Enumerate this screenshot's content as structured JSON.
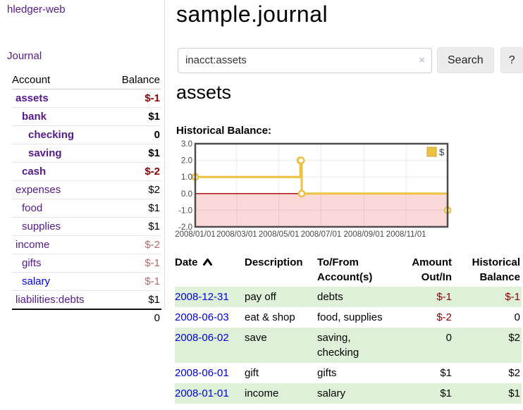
{
  "app": {
    "brand": "hledger-web",
    "nav_journal": "Journal"
  },
  "sidebar": {
    "headers": {
      "account": "Account",
      "balance": "Balance"
    },
    "accounts": [
      {
        "name": "assets",
        "level": 0,
        "bold": true,
        "link": "visited",
        "balance": "$-1",
        "balance_class": "neg"
      },
      {
        "name": "bank",
        "level": 1,
        "bold": true,
        "link": "visited",
        "balance": "$1",
        "balance_class": "pos"
      },
      {
        "name": "checking",
        "level": 2,
        "bold": true,
        "link": "visited",
        "balance": "0",
        "balance_class": "pos"
      },
      {
        "name": "saving",
        "level": 2,
        "bold": true,
        "link": "visited",
        "balance": "$1",
        "balance_class": "pos"
      },
      {
        "name": "cash",
        "level": 1,
        "bold": true,
        "link": "visited",
        "balance": "$-2",
        "balance_class": "neg"
      },
      {
        "name": "expenses",
        "level": 0,
        "bold": false,
        "link": "visited",
        "balance": "$2",
        "balance_class": "pos"
      },
      {
        "name": "food",
        "level": 1,
        "bold": false,
        "link": "visited",
        "balance": "$1",
        "balance_class": "pos"
      },
      {
        "name": "supplies",
        "level": 1,
        "bold": false,
        "link": "visited",
        "balance": "$1",
        "balance_class": "pos"
      },
      {
        "name": "income",
        "level": 0,
        "bold": false,
        "link": "visited",
        "balance": "$-2",
        "balance_class": "soft"
      },
      {
        "name": "gifts",
        "level": 1,
        "bold": false,
        "link": "visited",
        "balance": "$-1",
        "balance_class": "soft"
      },
      {
        "name": "salary",
        "level": 1,
        "bold": false,
        "link": "new",
        "balance": "$-1",
        "balance_class": "soft"
      },
      {
        "name": "liabilities:debts",
        "level": 0,
        "bold": false,
        "link": "visited",
        "balance": "$1",
        "balance_class": "pos"
      }
    ],
    "total": "0"
  },
  "main": {
    "title": "sample.journal",
    "search": {
      "value": "inacct:assets",
      "clear_glyph": "×",
      "button_label": "Search",
      "help_label": "?"
    },
    "account_heading": "assets"
  },
  "chart_data": {
    "type": "line",
    "title": "Historical Balance:",
    "x_start": "2008-01-01",
    "x_end": "2008-12-31",
    "ylim": [
      -2,
      3
    ],
    "y_ticks": [
      3,
      2,
      1,
      0,
      -1,
      -2
    ],
    "x_ticks": [
      {
        "date": "2008-01-01",
        "label": "2008/01/01"
      },
      {
        "date": "2008-03-01",
        "label": "2008/03/01"
      },
      {
        "date": "2008-05-01",
        "label": "2008/05/01"
      },
      {
        "date": "2008-07-01",
        "label": "2008/07/01"
      },
      {
        "date": "2008-09-01",
        "label": "2008/09/01"
      },
      {
        "date": "2008-11-01",
        "label": "2008/11/01"
      }
    ],
    "series": [
      {
        "name": "$",
        "color": "#edc240",
        "step": true,
        "points": [
          [
            "2008-01-01",
            1
          ],
          [
            "2008-06-01",
            2
          ],
          [
            "2008-06-02",
            2
          ],
          [
            "2008-06-03",
            0
          ],
          [
            "2008-12-31",
            -1
          ]
        ]
      }
    ],
    "grid": true,
    "legend_position": "top-right",
    "negative_region_color": "#fbd9d9",
    "zero_line_color": "#a40000"
  },
  "register": {
    "headers": {
      "date": "Date",
      "description": "Description",
      "tofrom": "To/From\nAccount(s)",
      "amount": "Amount\nOut/In",
      "balance": "Historical\nBalance"
    },
    "rows": [
      {
        "date": "2008-12-31",
        "description": "pay off",
        "accounts": "debts",
        "amount": "$-1",
        "amount_neg": true,
        "balance": "$-1",
        "balance_neg": true
      },
      {
        "date": "2008-06-03",
        "description": "eat & shop",
        "accounts": "food, supplies",
        "amount": "$-2",
        "amount_neg": true,
        "balance": "0",
        "balance_neg": false
      },
      {
        "date": "2008-06-02",
        "description": "save",
        "accounts": "saving,\nchecking",
        "amount": "0",
        "amount_neg": false,
        "balance": "$2",
        "balance_neg": false
      },
      {
        "date": "2008-06-01",
        "description": "gift",
        "accounts": "gifts",
        "amount": "$1",
        "amount_neg": false,
        "balance": "$2",
        "balance_neg": false
      },
      {
        "date": "2008-01-01",
        "description": "income",
        "accounts": "salary",
        "amount": "$1",
        "amount_neg": false,
        "balance": "$1",
        "balance_neg": false
      }
    ]
  },
  "colors": {
    "accent_purple": "#551a8b",
    "link_blue": "#0000dd",
    "negative_strong": "#8b0000",
    "negative_soft": "#b66a6a",
    "row_stripe_green": "#dff0d8",
    "chart_gold": "#edc240"
  }
}
